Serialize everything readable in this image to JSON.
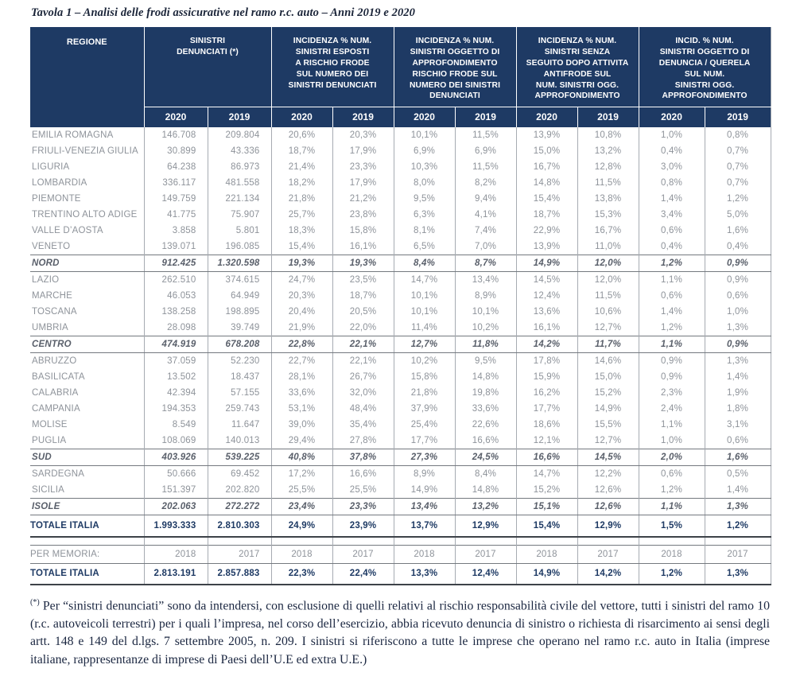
{
  "accent_color": "#1e3a64",
  "title": "Tavola 1 – Analisi delle frodi assicurative nel ramo r.c. auto – Anni 2019 e 2020",
  "table": {
    "region_header": "REGIONE",
    "column_groups": [
      "SINISTRI\nDENUNCIATI (*)",
      "INCIDENZA % NUM.\nSINISTRI ESPOSTI\nA RISCHIO FRODE\nSUL NUMERO DEI\nSINISTRI DENUNCIATI",
      "INCIDENZA % NUM.\nSINISTRI OGGETTO DI\nAPPROFONDIMENTO\nRISCHIO FRODE SUL\nNUMERO DEI SINISTRI\nDENUNCIATI",
      "INCIDENZA % NUM.\nSINISTRI SENZA\nSEGUITO DOPO ATTIVITA\nANTIFRODE SUL\nNUM. SINISTRI OGG.\nAPPROFONDIMENTO",
      "INCID. % NUM.\nSINISTRI OGGETTO DI\nDENUNCIA / QUERELA\nSUL NUM.\nSINISTRI OGG.\nAPPROFONDIMENTO"
    ],
    "year_columns": [
      "2020",
      "2019",
      "2020",
      "2019",
      "2020",
      "2019",
      "2020",
      "2019",
      "2020",
      "2019"
    ],
    "rows": [
      {
        "type": "data",
        "name": "EMILIA ROMAGNA",
        "values": [
          "146.708",
          "209.804",
          "20,6%",
          "20,3%",
          "10,1%",
          "11,5%",
          "13,9%",
          "10,8%",
          "1,0%",
          "0,8%"
        ]
      },
      {
        "type": "data",
        "name": "FRIULI-VENEZIA GIULIA",
        "values": [
          "30.899",
          "43.336",
          "18,7%",
          "17,9%",
          "6,9%",
          "6,9%",
          "15,0%",
          "13,2%",
          "0,4%",
          "0,7%"
        ]
      },
      {
        "type": "data",
        "name": "LIGURIA",
        "values": [
          "64.238",
          "86.973",
          "21,4%",
          "23,3%",
          "10,3%",
          "11,5%",
          "16,7%",
          "12,8%",
          "3,0%",
          "0,7%"
        ]
      },
      {
        "type": "data",
        "name": "LOMBARDIA",
        "values": [
          "336.117",
          "481.558",
          "18,2%",
          "17,9%",
          "8,0%",
          "8,2%",
          "14,8%",
          "11,5%",
          "0,8%",
          "0,7%"
        ]
      },
      {
        "type": "data",
        "name": "PIEMONTE",
        "values": [
          "149.759",
          "221.134",
          "21,8%",
          "21,2%",
          "9,5%",
          "9,4%",
          "15,4%",
          "13,8%",
          "1,4%",
          "1,2%"
        ]
      },
      {
        "type": "data",
        "name": "TRENTINO ALTO ADIGE",
        "values": [
          "41.775",
          "75.907",
          "25,7%",
          "23,8%",
          "6,3%",
          "4,1%",
          "18,7%",
          "15,3%",
          "3,4%",
          "5,0%"
        ]
      },
      {
        "type": "data",
        "name": "VALLE D’AOSTA",
        "values": [
          "3.858",
          "5.801",
          "18,3%",
          "15,8%",
          "8,1%",
          "7,4%",
          "22,9%",
          "16,7%",
          "0,6%",
          "1,6%"
        ]
      },
      {
        "type": "data",
        "name": "VENETO",
        "values": [
          "139.071",
          "196.085",
          "15,4%",
          "16,1%",
          "6,5%",
          "7,0%",
          "13,9%",
          "11,0%",
          "0,4%",
          "0,4%"
        ]
      },
      {
        "type": "subtotal",
        "name": "NORD",
        "values": [
          "912.425",
          "1.320.598",
          "19,3%",
          "19,3%",
          "8,4%",
          "8,7%",
          "14,9%",
          "12,0%",
          "1,2%",
          "0,9%"
        ]
      },
      {
        "type": "data",
        "name": "LAZIO",
        "values": [
          "262.510",
          "374.615",
          "24,7%",
          "23,5%",
          "14,7%",
          "13,4%",
          "14,5%",
          "12,0%",
          "1,1%",
          "0,9%"
        ]
      },
      {
        "type": "data",
        "name": "MARCHE",
        "values": [
          "46.053",
          "64.949",
          "20,3%",
          "18,7%",
          "10,1%",
          "8,9%",
          "12,4%",
          "11,5%",
          "0,6%",
          "0,6%"
        ]
      },
      {
        "type": "data",
        "name": "TOSCANA",
        "values": [
          "138.258",
          "198.895",
          "20,4%",
          "20,5%",
          "10,1%",
          "10,1%",
          "13,6%",
          "10,6%",
          "1,4%",
          "1,0%"
        ]
      },
      {
        "type": "data",
        "name": "UMBRIA",
        "values": [
          "28.098",
          "39.749",
          "21,9%",
          "22,0%",
          "11,4%",
          "10,2%",
          "16,1%",
          "12,7%",
          "1,2%",
          "1,3%"
        ]
      },
      {
        "type": "subtotal",
        "name": "CENTRO",
        "values": [
          "474.919",
          "678.208",
          "22,8%",
          "22,1%",
          "12,7%",
          "11,8%",
          "14,2%",
          "11,7%",
          "1,1%",
          "0,9%"
        ]
      },
      {
        "type": "data",
        "name": "ABRUZZO",
        "values": [
          "37.059",
          "52.230",
          "22,7%",
          "22,1%",
          "10,2%",
          "9,5%",
          "17,8%",
          "14,6%",
          "0,9%",
          "1,3%"
        ]
      },
      {
        "type": "data",
        "name": "BASILICATA",
        "values": [
          "13.502",
          "18.437",
          "28,1%",
          "26,7%",
          "15,8%",
          "14,8%",
          "15,9%",
          "15,0%",
          "0,9%",
          "1,4%"
        ]
      },
      {
        "type": "data",
        "name": "CALABRIA",
        "values": [
          "42.394",
          "57.155",
          "33,6%",
          "32,0%",
          "21,8%",
          "19,8%",
          "16,2%",
          "15,2%",
          "2,3%",
          "1,9%"
        ]
      },
      {
        "type": "data",
        "name": "CAMPANIA",
        "values": [
          "194.353",
          "259.743",
          "53,1%",
          "48,4%",
          "37,9%",
          "33,6%",
          "17,7%",
          "14,9%",
          "2,4%",
          "1,8%"
        ]
      },
      {
        "type": "data",
        "name": "MOLISE",
        "values": [
          "8.549",
          "11.647",
          "39,0%",
          "35,4%",
          "25,4%",
          "22,6%",
          "18,6%",
          "15,5%",
          "1,1%",
          "3,1%"
        ]
      },
      {
        "type": "data",
        "name": "PUGLIA",
        "values": [
          "108.069",
          "140.013",
          "29,4%",
          "27,8%",
          "17,7%",
          "16,6%",
          "12,1%",
          "12,7%",
          "1,0%",
          "0,6%"
        ]
      },
      {
        "type": "subtotal",
        "name": "SUD",
        "values": [
          "403.926",
          "539.225",
          "40,8%",
          "37,8%",
          "27,3%",
          "24,5%",
          "16,6%",
          "14,5%",
          "2,0%",
          "1,6%"
        ]
      },
      {
        "type": "data",
        "name": "SARDEGNA",
        "values": [
          "50.666",
          "69.452",
          "17,2%",
          "16,6%",
          "8,9%",
          "8,4%",
          "14,7%",
          "12,2%",
          "0,6%",
          "0,5%"
        ]
      },
      {
        "type": "data",
        "name": "SICILIA",
        "values": [
          "151.397",
          "202.820",
          "25,5%",
          "25,5%",
          "14,9%",
          "14,8%",
          "15,2%",
          "12,6%",
          "1,2%",
          "1,4%"
        ]
      },
      {
        "type": "subtotal",
        "name": "ISOLE",
        "values": [
          "202.063",
          "272.272",
          "23,4%",
          "23,3%",
          "13,4%",
          "13,2%",
          "15,1%",
          "12,6%",
          "1,1%",
          "1,3%"
        ]
      },
      {
        "type": "total",
        "name": "TOTALE ITALIA",
        "values": [
          "1.993.333",
          "2.810.303",
          "24,9%",
          "23,9%",
          "13,7%",
          "12,9%",
          "15,4%",
          "12,9%",
          "1,5%",
          "1,2%"
        ]
      }
    ],
    "memoria": {
      "label": "PER MEMORIA:",
      "years": [
        "2018",
        "2017",
        "2018",
        "2017",
        "2018",
        "2017",
        "2018",
        "2017",
        "2018",
        "2017"
      ],
      "total": {
        "name": "TOTALE ITALIA",
        "values": [
          "2.813.191",
          "2.857.883",
          "22,3%",
          "22,4%",
          "13,3%",
          "12,4%",
          "14,9%",
          "14,2%",
          "1,2%",
          "1,3%"
        ]
      }
    }
  },
  "footnote": {
    "marker": "(*)",
    "text": " Per “sinistri denunciati” sono da intendersi, con esclusione di quelli relativi al rischio responsabilità civile del vettore, tutti i sinistri del ramo 10 (r.c. autoveicoli terrestri) per i quali l’impresa, nel corso dell’esercizio, abbia ricevuto denuncia di sinistro o richiesta di risarcimento ai sensi degli artt. 148 e 149 del d.lgs. 7 settembre 2005, n. 209. I sinistri si riferiscono a tutte le imprese che operano nel ramo r.c. auto in Italia (imprese italiane, rappresentanze di imprese di Paesi dell’U.E ed extra U.E.)"
  }
}
